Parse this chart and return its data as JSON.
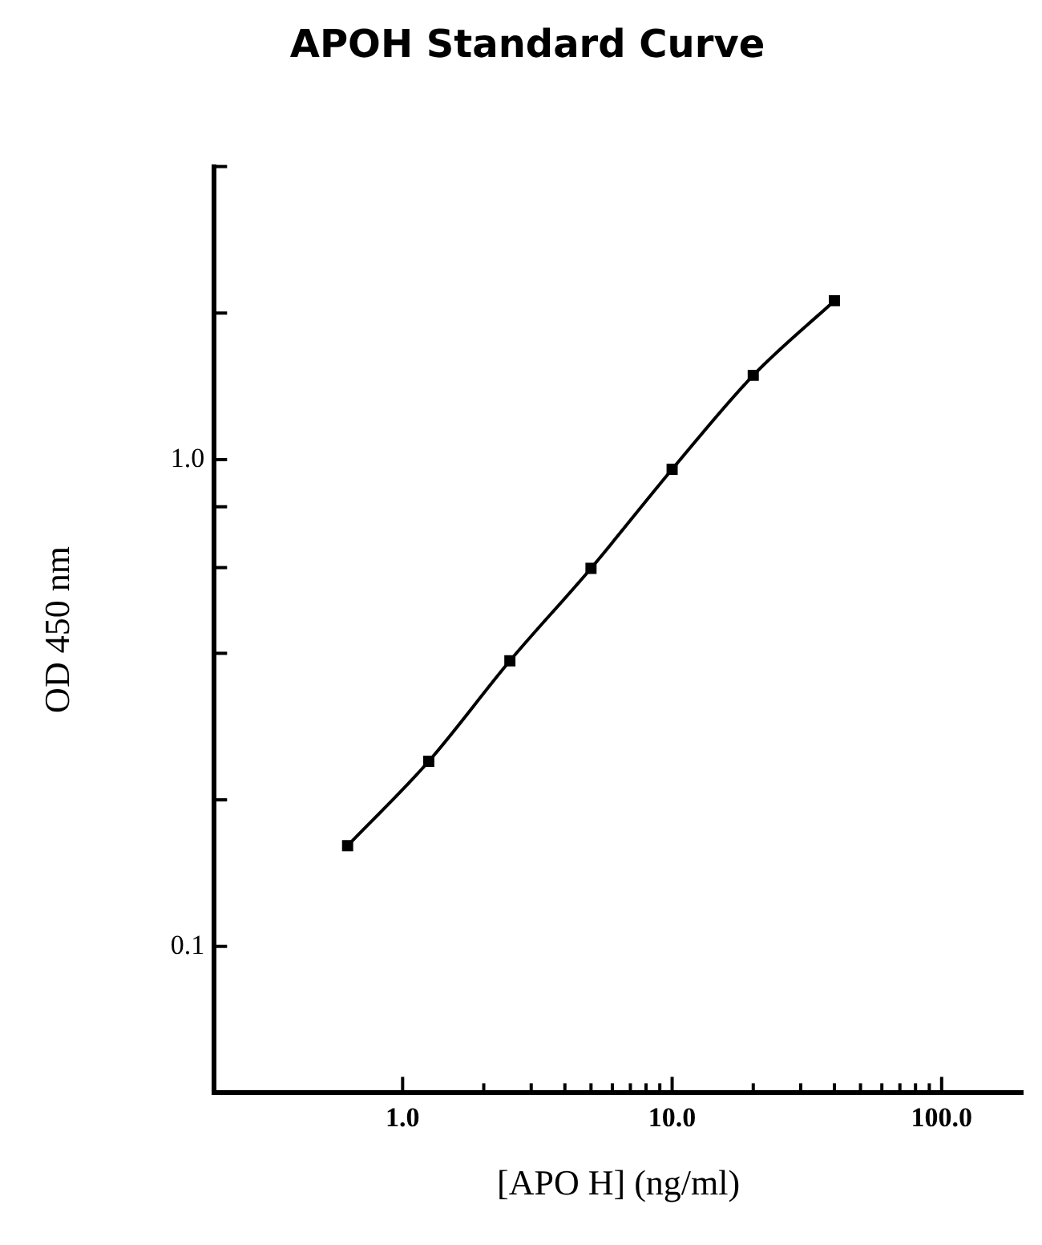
{
  "chart_data": {
    "type": "line",
    "title": "APOH Standard Curve",
    "xlabel": "[APO H] (ng/ml)",
    "ylabel": "OD 450 nm",
    "x": [
      0.625,
      1.25,
      2.5,
      5,
      10,
      20,
      40
    ],
    "series": [
      {
        "color": "#000000",
        "values": [
          0.161,
          0.24,
          0.386,
          0.598,
          0.955,
          1.49,
          2.12
        ]
      }
    ],
    "log": "xy",
    "xlim": [
      0.2,
      200
    ],
    "ylim": [
      0.05,
      4
    ],
    "xticks": [
      {
        "value": 1,
        "label": "1.0"
      },
      {
        "value": 2,
        "label": null
      },
      {
        "value": 3,
        "label": null
      },
      {
        "value": 4,
        "label": null
      },
      {
        "value": 5,
        "label": null
      },
      {
        "value": 6,
        "label": null
      },
      {
        "value": 7,
        "label": null
      },
      {
        "value": 8,
        "label": null
      },
      {
        "value": 9,
        "label": null
      },
      {
        "value": 10,
        "label": "10.0"
      },
      {
        "value": 20,
        "label": null
      },
      {
        "value": 30,
        "label": null
      },
      {
        "value": 40,
        "label": null
      },
      {
        "value": 50,
        "label": null
      },
      {
        "value": 60,
        "label": null
      },
      {
        "value": 70,
        "label": null
      },
      {
        "value": 80,
        "label": null
      },
      {
        "value": 90,
        "label": null
      },
      {
        "value": 100,
        "label": "100.0"
      }
    ],
    "yticks": [
      {
        "value": 0.1,
        "label": "0.1"
      },
      {
        "value": 0.2,
        "label": null
      },
      {
        "value": 0.4,
        "label": null
      },
      {
        "value": 0.6,
        "label": null
      },
      {
        "value": 0.8,
        "label": null
      },
      {
        "value": 1,
        "label": "1.0"
      },
      {
        "value": 2,
        "label": null
      },
      {
        "value": 4,
        "label": null
      }
    ],
    "grid": false,
    "legend": false,
    "marker": "square",
    "line_style": "solid"
  }
}
